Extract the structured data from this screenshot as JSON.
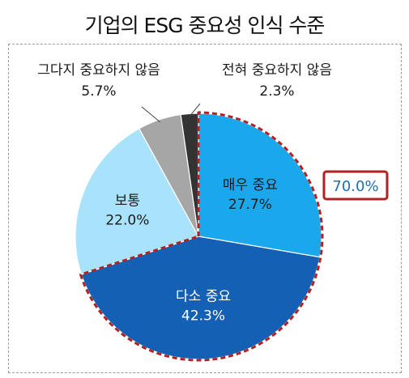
{
  "chart_data": {
    "type": "pie",
    "title": "기업의 ESG 중요성 인식 수준",
    "slices": [
      {
        "label": "매우 중요",
        "value": 27.7,
        "value_label": "27.7%",
        "color": "#1aa7ec",
        "label_color": "#1a1a1a"
      },
      {
        "label": "다소 중요",
        "value": 42.3,
        "value_label": "42.3%",
        "color": "#1460b4",
        "label_color": "#ffffff"
      },
      {
        "label": "보통",
        "value": 22.0,
        "value_label": "22.0%",
        "color": "#a9e3fb",
        "label_color": "#1a1a1a"
      },
      {
        "label": "그다지 중요하지 않음",
        "value": 5.7,
        "value_label": "5.7%",
        "color": "#a6a6a6",
        "label_color": "#1a1a1a"
      },
      {
        "label": "전혀 중요하지 않음",
        "value": 2.3,
        "value_label": "2.3%",
        "color": "#333333",
        "label_color": "#1a1a1a"
      }
    ],
    "start_angle": "12 o'clock",
    "direction": "clockwise",
    "highlight": {
      "label": "70.0%",
      "covers": [
        "매우 중요",
        "다소 중요"
      ],
      "outline_color": "#b22222",
      "text_color": "#1f6fb0"
    }
  }
}
